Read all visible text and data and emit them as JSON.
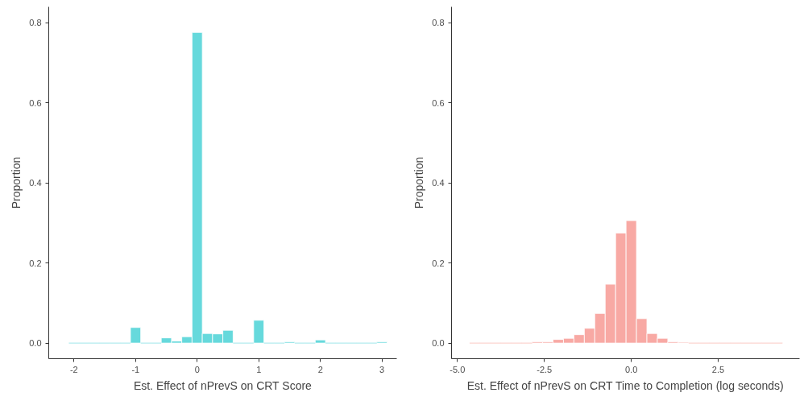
{
  "chart_data": [
    {
      "type": "histogram",
      "xlabel": "Est. Effect of nPrevS on CRT Score",
      "ylabel": "Proportion",
      "color": "#66d9dc",
      "bins": [
        -2.0833,
        -1.9167,
        -1.75,
        -1.5833,
        -1.4167,
        -1.25,
        -1.0833,
        -0.9167,
        -0.75,
        -0.5833,
        -0.4167,
        -0.25,
        -0.0833,
        0.0833,
        0.25,
        0.4167,
        0.5833,
        0.75,
        0.9167,
        1.0833,
        1.25,
        1.4167,
        1.5833,
        1.75,
        1.9167,
        2.0833,
        2.25,
        2.4167,
        2.5833,
        2.75,
        2.9167,
        3.0833
      ],
      "values": [
        0,
        0,
        0,
        0,
        0,
        0,
        0.039,
        0,
        0,
        0.013,
        0.005,
        0.016,
        0.776,
        0.024,
        0.023,
        0.032,
        0,
        0,
        0.057,
        0,
        0,
        0.003,
        0,
        0,
        0.008,
        0,
        0,
        0,
        0,
        0,
        0.003
      ],
      "xlim": [
        -2.41,
        3.24
      ],
      "ylim": [
        -0.039,
        0.84
      ],
      "xticks": [
        -2,
        -1,
        0,
        1,
        2,
        3
      ],
      "yticks": [
        {
          "value": 0,
          "label": "0.0"
        },
        0.2,
        0.4,
        0.6,
        0.8
      ],
      "grid": false
    },
    {
      "type": "histogram",
      "xlabel": "Est. Effect of nPrevS on CRT Time to Completion (log seconds)",
      "ylabel": "Proportion",
      "color": "#f8a9a4",
      "bins": [
        -4.65,
        -4.35,
        -4.05,
        -3.75,
        -3.45,
        -3.15,
        -2.85,
        -2.55,
        -2.25,
        -1.95,
        -1.65,
        -1.35,
        -1.05,
        -0.75,
        -0.45,
        -0.15,
        0.15,
        0.45,
        0.75,
        1.05,
        1.35,
        1.65,
        1.95,
        2.25,
        2.55,
        2.85,
        3.15,
        3.45,
        3.75,
        4.05,
        4.35
      ],
      "values": [
        0,
        0,
        0,
        0,
        0,
        0,
        0.003,
        0.003,
        0.009,
        0.012,
        0.021,
        0.037,
        0.074,
        0.147,
        0.275,
        0.306,
        0.061,
        0.024,
        0.012,
        0.003,
        0.002,
        0,
        0,
        0,
        0,
        0,
        0,
        0,
        0,
        0
      ],
      "xlim": [
        -5.17,
        4.84
      ],
      "ylim": [
        -0.039,
        0.84
      ],
      "xticks": [
        {
          "value": -5,
          "label": "-5.0"
        },
        -2.5,
        {
          "value": 0,
          "label": "0.0"
        },
        2.5
      ],
      "yticks": [
        {
          "value": 0,
          "label": "0.0"
        },
        0.2,
        0.4,
        0.6,
        0.8
      ],
      "grid": false
    }
  ]
}
